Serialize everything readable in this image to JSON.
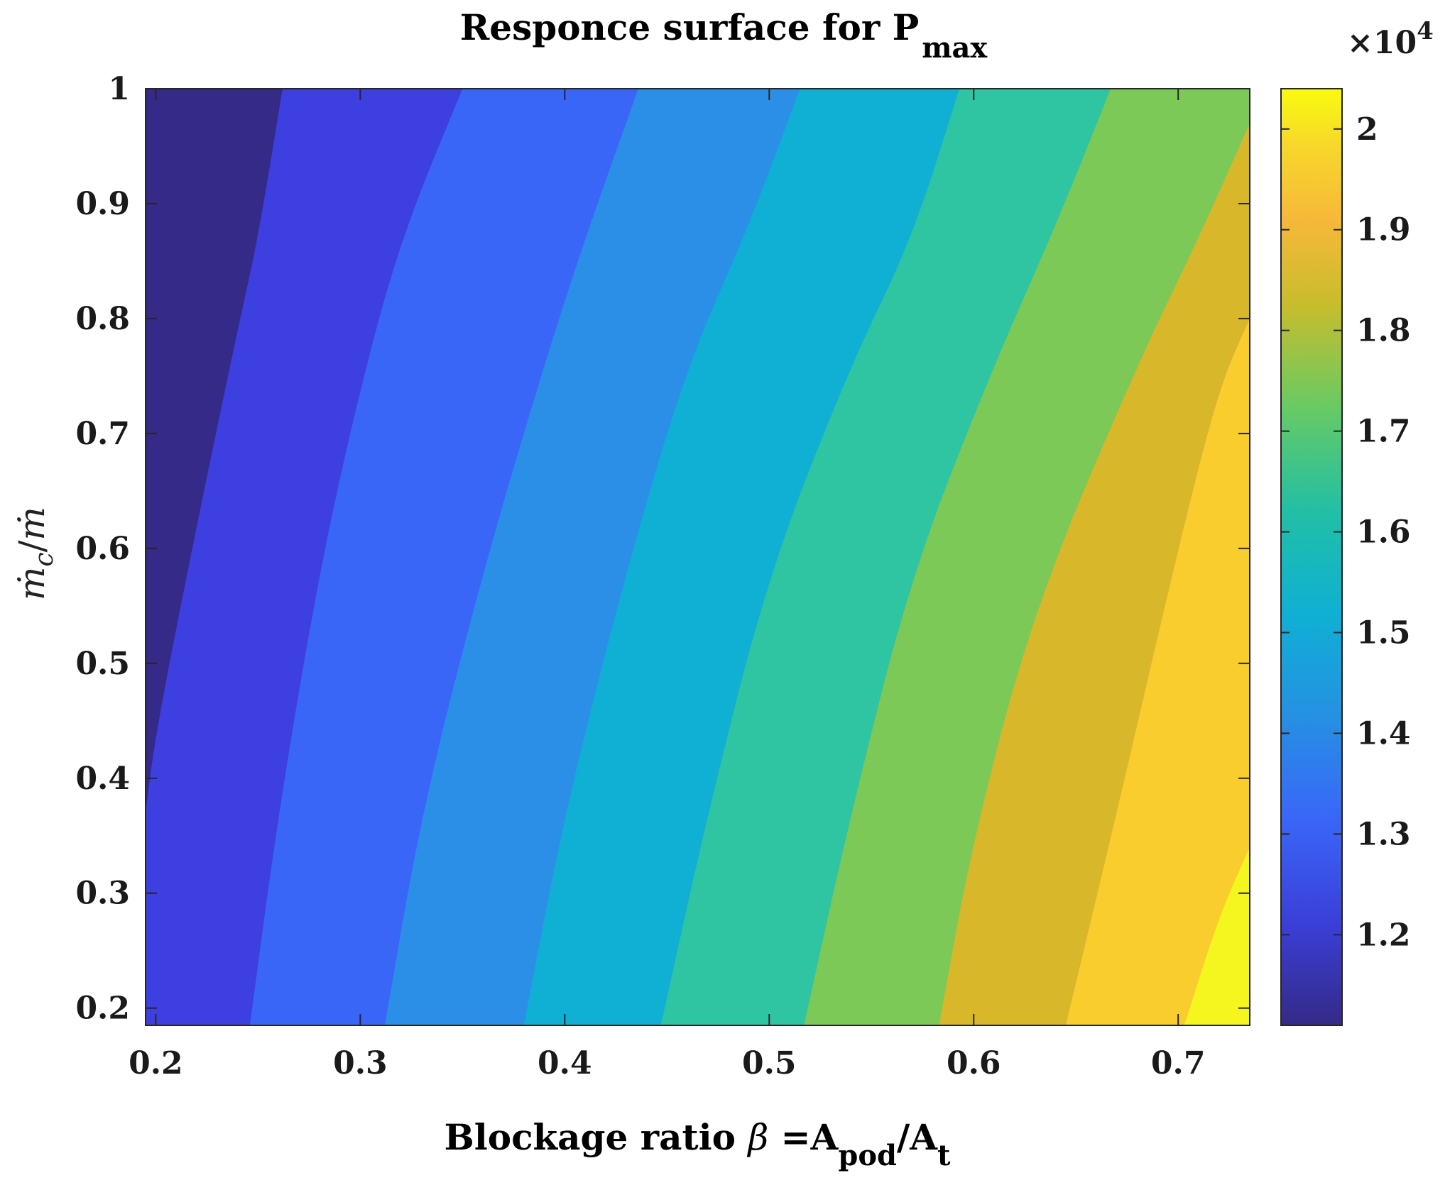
{
  "chart_data": {
    "type": "contour",
    "title": {
      "main": "Responce surface for P",
      "sub": "max"
    },
    "xlabel": {
      "text": "Blockage ratio ",
      "symbol": "β",
      "eq": " =A",
      "sub1": "pod",
      "slash": "/A",
      "sub2": "t"
    },
    "ylabel": {
      "numer": "ṁ",
      "numer_sub": "c",
      "slash": "/",
      "denom": "ṁ"
    },
    "xlim": [
      0.195,
      0.735
    ],
    "ylim": [
      0.185,
      1.0
    ],
    "xticks": [
      0.2,
      0.3,
      0.4,
      0.5,
      0.6,
      0.7
    ],
    "xtick_labels": [
      "0.2",
      "0.3",
      "0.4",
      "0.5",
      "0.6",
      "0.7"
    ],
    "yticks": [
      0.2,
      0.3,
      0.4,
      0.5,
      0.6,
      0.7,
      0.8,
      0.9,
      1.0
    ],
    "ytick_labels": [
      "0.2",
      "0.3",
      "0.4",
      "0.5",
      "0.6",
      "0.7",
      "0.8",
      "0.9",
      "1"
    ],
    "colorbar": {
      "multiplier_base": "×10",
      "multiplier_exp": "4",
      "range": [
        1.11,
        2.04
      ],
      "ticks": [
        1.2,
        1.3,
        1.4,
        1.5,
        1.6,
        1.7,
        1.8,
        1.9,
        2.0
      ],
      "tick_labels": [
        "1.2",
        "1.3",
        "1.4",
        "1.5",
        "1.6",
        "1.7",
        "1.8",
        "1.9",
        "2"
      ],
      "colormap": "parula"
    },
    "contour_levels": [
      1.2,
      1.3,
      1.4,
      1.5,
      1.6,
      1.7,
      1.8,
      1.9,
      2.0
    ],
    "level_boundaries": [
      {
        "level": 1.2,
        "points": [
          [
            0.195,
            0.37
          ],
          [
            0.2,
            0.44
          ],
          [
            0.22,
            0.62
          ],
          [
            0.24,
            0.79
          ],
          [
            0.25,
            0.87
          ],
          [
            0.262,
            1.0
          ]
        ]
      },
      {
        "level": 1.3,
        "points": [
          [
            0.246,
            0.185
          ],
          [
            0.26,
            0.37
          ],
          [
            0.28,
            0.58
          ],
          [
            0.3,
            0.74
          ],
          [
            0.32,
            0.87
          ],
          [
            0.35,
            1.0
          ]
        ]
      },
      {
        "level": 1.4,
        "points": [
          [
            0.312,
            0.185
          ],
          [
            0.33,
            0.37
          ],
          [
            0.36,
            0.58
          ],
          [
            0.39,
            0.76
          ],
          [
            0.41,
            0.87
          ],
          [
            0.436,
            1.0
          ]
        ]
      },
      {
        "level": 1.5,
        "points": [
          [
            0.38,
            0.185
          ],
          [
            0.4,
            0.37
          ],
          [
            0.43,
            0.58
          ],
          [
            0.46,
            0.76
          ],
          [
            0.49,
            0.88
          ],
          [
            0.515,
            1.0
          ]
        ]
      },
      {
        "level": 1.6,
        "points": [
          [
            0.447,
            0.185
          ],
          [
            0.47,
            0.37
          ],
          [
            0.5,
            0.58
          ],
          [
            0.54,
            0.76
          ],
          [
            0.57,
            0.87
          ],
          [
            0.593,
            1.0
          ]
        ]
      },
      {
        "level": 1.7,
        "points": [
          [
            0.517,
            0.185
          ],
          [
            0.54,
            0.37
          ],
          [
            0.57,
            0.58
          ],
          [
            0.61,
            0.76
          ],
          [
            0.64,
            0.88
          ],
          [
            0.667,
            1.0
          ]
        ]
      },
      {
        "level": 1.8,
        "points": [
          [
            0.583,
            0.185
          ],
          [
            0.6,
            0.35
          ],
          [
            0.63,
            0.55
          ],
          [
            0.68,
            0.76
          ],
          [
            0.71,
            0.87
          ],
          [
            0.735,
            0.97
          ]
        ]
      },
      {
        "level": 1.9,
        "points": [
          [
            0.645,
            0.185
          ],
          [
            0.67,
            0.37
          ],
          [
            0.7,
            0.6
          ],
          [
            0.72,
            0.74
          ],
          [
            0.735,
            0.8
          ]
        ]
      },
      {
        "level": 2.0,
        "points": [
          [
            0.703,
            0.185
          ],
          [
            0.72,
            0.28
          ],
          [
            0.735,
            0.34
          ]
        ]
      }
    ]
  }
}
